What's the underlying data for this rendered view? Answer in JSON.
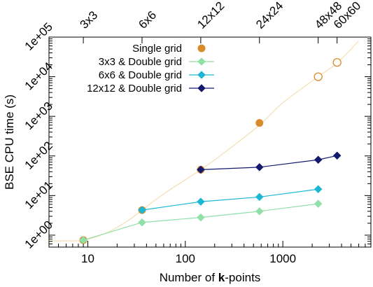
{
  "chart_data": {
    "type": "line",
    "xlabel_prefix": "Number of ",
    "xlabel_bold": "k",
    "xlabel_suffix": "-points",
    "ylabel": "BSE CPU time (s)",
    "x_scale": "log",
    "y_scale": "log",
    "xlim": [
      4,
      8000
    ],
    "ylim": [
      0.5,
      100000
    ],
    "grid": false,
    "legend_position": "top-left",
    "x_ticks": [
      {
        "value": 10,
        "label": "10"
      },
      {
        "value": 100,
        "label": "100"
      },
      {
        "value": 1000,
        "label": "1000"
      }
    ],
    "y_ticks": [
      {
        "value": 1,
        "label": "1e+00"
      },
      {
        "value": 10,
        "label": "1e+01"
      },
      {
        "value": 100,
        "label": "1e+02"
      },
      {
        "value": 1000,
        "label": "1e+03"
      },
      {
        "value": 10000,
        "label": "1e+04"
      },
      {
        "value": 100000,
        "label": "1e+05"
      }
    ],
    "top_ticks": [
      {
        "value": 9,
        "label": "3x3"
      },
      {
        "value": 36,
        "label": "6x6"
      },
      {
        "value": 144,
        "label": "12x12"
      },
      {
        "value": 576,
        "label": "24x24"
      },
      {
        "value": 2304,
        "label": "48x48"
      },
      {
        "value": 3600,
        "label": "60x60"
      }
    ],
    "fit_curve": {
      "color": "#f5deb3",
      "x": [
        4,
        6,
        9,
        15,
        25,
        36,
        60,
        100,
        144,
        250,
        576,
        1000,
        2304,
        3600,
        6000
      ],
      "y": [
        0.72,
        0.72,
        0.75,
        1.1,
        2.2,
        4.3,
        11,
        25,
        45,
        120,
        600,
        2200,
        10000,
        22000,
        80000
      ]
    },
    "series": [
      {
        "name": "Single grid",
        "color": "#d98c2b",
        "marker": "circle",
        "line": false,
        "points": [
          {
            "x": 9,
            "y": 0.75
          },
          {
            "x": 36,
            "y": 4.3
          },
          {
            "x": 144,
            "y": 45
          },
          {
            "x": 576,
            "y": 680
          }
        ],
        "open_points": [
          {
            "x": 2304,
            "y": 10000
          },
          {
            "x": 3600,
            "y": 23000
          }
        ]
      },
      {
        "name": "3x3 & Double grid",
        "color": "#90e0a8",
        "marker": "diamond",
        "line": true,
        "points": [
          {
            "x": 9,
            "y": 0.75
          },
          {
            "x": 36,
            "y": 2.1
          },
          {
            "x": 144,
            "y": 2.8
          },
          {
            "x": 576,
            "y": 4.0
          },
          {
            "x": 2304,
            "y": 6.2
          }
        ]
      },
      {
        "name": "6x6 & Double grid",
        "color": "#1ab8d4",
        "marker": "diamond",
        "line": true,
        "points": [
          {
            "x": 36,
            "y": 4.3
          },
          {
            "x": 144,
            "y": 7.0
          },
          {
            "x": 576,
            "y": 9.2
          },
          {
            "x": 2304,
            "y": 14.5
          }
        ]
      },
      {
        "name": "12x12 & Double grid",
        "color": "#141a6e",
        "marker": "diamond",
        "line": true,
        "points": [
          {
            "x": 144,
            "y": 45
          },
          {
            "x": 576,
            "y": 52
          },
          {
            "x": 2304,
            "y": 80
          },
          {
            "x": 3600,
            "y": 102
          }
        ]
      }
    ]
  }
}
